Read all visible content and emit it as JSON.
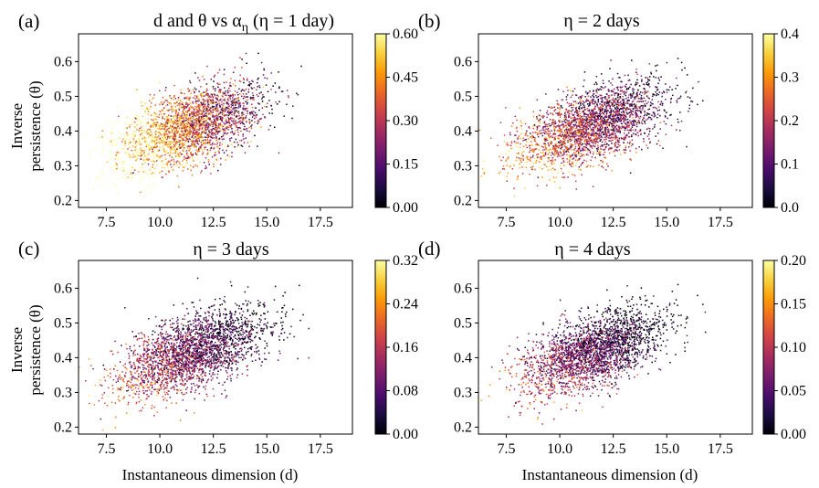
{
  "figure": {
    "xlabel": "Instantaneous dimension (d)",
    "ylabel_line1": "Inverse",
    "ylabel_line2": "persistence (θ)",
    "colormap": "inferno",
    "colormap_stops": [
      "#000004",
      "#1b0c41",
      "#4a0c6b",
      "#781c6d",
      "#a52c60",
      "#cf4446",
      "#ed6925",
      "#fb9b06",
      "#f7d13d",
      "#fcffa4"
    ]
  },
  "chart_data": [
    {
      "type": "scatter",
      "panel_tag": "(a)",
      "title": "d and θ vs α",
      "title_sub": "η",
      "title_tail": " (η = 1 day)",
      "xlabel": "",
      "ylabel": "Inverse persistence (θ)",
      "xlim": [
        6.2,
        19.0
      ],
      "ylim": [
        0.18,
        0.68
      ],
      "xticks": [
        7.5,
        10.0,
        12.5,
        15.0,
        17.5
      ],
      "xtick_labels": [
        "7.5",
        "10.0",
        "12.5",
        "15.0",
        "17.5"
      ],
      "yticks": [
        0.2,
        0.3,
        0.4,
        0.5,
        0.6
      ],
      "ytick_labels": [
        "0.2",
        "0.3",
        "0.4",
        "0.5",
        "0.6"
      ],
      "colorbar": {
        "range": [
          0.0,
          0.6
        ],
        "ticks": [
          0.0,
          0.15,
          0.3,
          0.45,
          0.6
        ],
        "tick_labels": [
          "0.00",
          "0.15",
          "0.30",
          "0.45",
          "0.60"
        ]
      },
      "color_trend": "high α at low d and low θ (yellow/orange), decreasing toward high d",
      "cloud": {
        "x_mean": 11.5,
        "x_sd": 1.7,
        "y_mean": 0.415,
        "y_sd": 0.062,
        "corr": 0.55,
        "c_mean_frac": 0.62,
        "c_spread_frac": 0.22,
        "n_points": 2600
      }
    },
    {
      "type": "scatter",
      "panel_tag": "(b)",
      "title": "η = 2 days",
      "xlabel": "",
      "ylabel": "",
      "xlim": [
        6.2,
        19.0
      ],
      "ylim": [
        0.18,
        0.68
      ],
      "xticks": [
        7.5,
        10.0,
        12.5,
        15.0,
        17.5
      ],
      "xtick_labels": [
        "7.5",
        "10.0",
        "12.5",
        "15.0",
        "17.5"
      ],
      "yticks": [
        0.2,
        0.3,
        0.4,
        0.5,
        0.6
      ],
      "ytick_labels": [
        "0.2",
        "0.3",
        "0.4",
        "0.5",
        "0.6"
      ],
      "colorbar": {
        "range": [
          0.0,
          0.4
        ],
        "ticks": [
          0.0,
          0.1,
          0.2,
          0.3,
          0.4
        ],
        "tick_labels": [
          "0.0",
          "0.1",
          "0.2",
          "0.3",
          "0.4"
        ]
      },
      "color_trend": "mostly purple; orange/yellow at low d",
      "cloud": {
        "x_mean": 11.5,
        "x_sd": 1.7,
        "y_mean": 0.415,
        "y_sd": 0.062,
        "corr": 0.55,
        "c_mean_frac": 0.42,
        "c_spread_frac": 0.2,
        "n_points": 2600
      }
    },
    {
      "type": "scatter",
      "panel_tag": "(c)",
      "title": "η = 3 days",
      "xlabel": "Instantaneous dimension (d)",
      "ylabel": "Inverse persistence (θ)",
      "xlim": [
        6.2,
        19.0
      ],
      "ylim": [
        0.18,
        0.68
      ],
      "xticks": [
        7.5,
        10.0,
        12.5,
        15.0,
        17.5
      ],
      "xtick_labels": [
        "7.5",
        "10.0",
        "12.5",
        "15.0",
        "17.5"
      ],
      "yticks": [
        0.2,
        0.3,
        0.4,
        0.5,
        0.6
      ],
      "ytick_labels": [
        "0.2",
        "0.3",
        "0.4",
        "0.5",
        "0.6"
      ],
      "colorbar": {
        "range": [
          0.0,
          0.32
        ],
        "ticks": [
          0.0,
          0.08,
          0.16,
          0.24,
          0.32
        ],
        "tick_labels": [
          "0.00",
          "0.08",
          "0.16",
          "0.24",
          "0.32"
        ]
      },
      "color_trend": "mostly dark purple; orange at low d and low θ",
      "cloud": {
        "x_mean": 11.5,
        "x_sd": 1.7,
        "y_mean": 0.415,
        "y_sd": 0.062,
        "corr": 0.55,
        "c_mean_frac": 0.3,
        "c_spread_frac": 0.18,
        "n_points": 2600
      }
    },
    {
      "type": "scatter",
      "panel_tag": "(d)",
      "title": "η = 4 days",
      "xlabel": "Instantaneous dimension (d)",
      "ylabel": "",
      "xlim": [
        6.2,
        19.0
      ],
      "ylim": [
        0.18,
        0.68
      ],
      "xticks": [
        7.5,
        10.0,
        12.5,
        15.0,
        17.5
      ],
      "xtick_labels": [
        "7.5",
        "10.0",
        "12.5",
        "15.0",
        "17.5"
      ],
      "yticks": [
        0.2,
        0.3,
        0.4,
        0.5,
        0.6
      ],
      "ytick_labels": [
        "0.2",
        "0.3",
        "0.4",
        "0.5",
        "0.6"
      ],
      "colorbar": {
        "range": [
          0.0,
          0.2
        ],
        "ticks": [
          0.0,
          0.05,
          0.1,
          0.15,
          0.2
        ],
        "tick_labels": [
          "0.00",
          "0.05",
          "0.10",
          "0.15",
          "0.20"
        ]
      },
      "color_trend": "mostly dark purple/black; orange at low d",
      "cloud": {
        "x_mean": 11.5,
        "x_sd": 1.7,
        "y_mean": 0.415,
        "y_sd": 0.062,
        "corr": 0.55,
        "c_mean_frac": 0.25,
        "c_spread_frac": 0.17,
        "n_points": 2600
      }
    }
  ]
}
